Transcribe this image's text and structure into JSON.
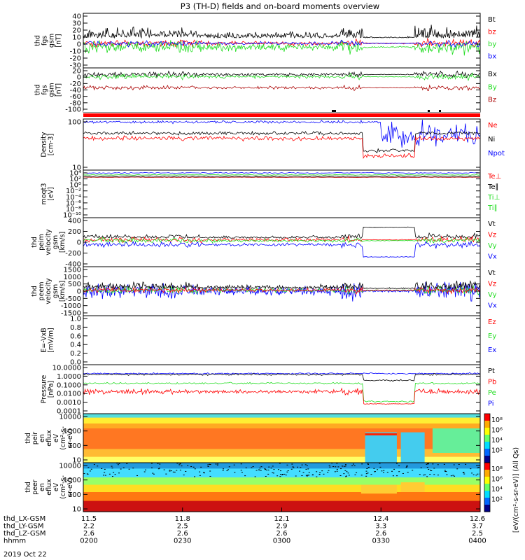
{
  "title": "P3 (TH-D) fields and on-board moments overview",
  "date_label": "2019 Oct 22",
  "colors": {
    "black": "#000000",
    "red": "#ff0000",
    "green": "#22dd22",
    "blue": "#0000ff",
    "darkred": "#aa0000"
  },
  "x_axis": {
    "rows": [
      {
        "label": "thd_LX-GSM",
        "values": [
          "11.5",
          "11.8",
          "12.1",
          "12.4",
          "12.6"
        ]
      },
      {
        "label": "thd_LY-GSM",
        "values": [
          "2.2",
          "2.5",
          "2.9",
          "3.3",
          "3.7"
        ]
      },
      {
        "label": "thd_LZ-GSM",
        "values": [
          "2.6",
          "2.6",
          "2.6",
          "2.6",
          "2.5"
        ]
      },
      {
        "label": "hhmm",
        "values": [
          "0200",
          "0230",
          "0300",
          "0330",
          "0400"
        ]
      }
    ]
  },
  "chart_data": {
    "type": "line",
    "time_range": [
      "0200",
      "0400"
    ],
    "panels": [
      {
        "ylabel": [
          "thd",
          "fgs",
          "gsm",
          "[nT]"
        ],
        "yticks": [
          "40",
          "30",
          "20",
          "10",
          "0",
          "-10",
          "-20",
          "-30"
        ],
        "ylim": [
          -35,
          40
        ],
        "legend": [
          {
            "text": "Bt",
            "color": "#000000"
          },
          {
            "text": "bz",
            "color": "#ff0000"
          },
          {
            "text": "by",
            "color": "#22dd22"
          },
          {
            "text": "bx",
            "color": "#0000ff"
          }
        ]
      },
      {
        "ylabel": [
          "thd",
          "fgs",
          "gsm",
          "[nT]"
        ],
        "yticks": [
          "20",
          "0",
          "-20",
          "-40",
          "-60",
          "-80",
          "-100"
        ],
        "ylim": [
          -105,
          25
        ],
        "legend": [
          {
            "text": "Bx",
            "color": "#000000"
          },
          {
            "text": "By",
            "color": "#22dd22"
          },
          {
            "text": "Bz",
            "color": "#aa0000"
          }
        ]
      },
      {
        "ylabel": [
          "Density",
          "[cm-3]"
        ],
        "yticks": [
          "100",
          "10"
        ],
        "ylim": [
          0.5,
          500
        ],
        "scale": "log",
        "legend": [
          {
            "text": "Ne",
            "color": "#ff0000"
          },
          {
            "text": "Ni",
            "color": "#000000"
          },
          {
            "text": "Npot",
            "color": "#0000ff"
          }
        ]
      },
      {
        "ylabel": [
          "moqt3",
          "[eV]"
        ],
        "yticks": [
          "10⁴",
          "10²",
          "10⁰",
          "10⁻²",
          "10⁻⁴",
          "10⁻⁶",
          "10⁻⁸",
          "10⁻¹⁰"
        ],
        "ylim": [
          -12,
          4
        ],
        "scale": "log",
        "legend": [
          {
            "text": "Te⊥",
            "color": "#ff0000"
          },
          {
            "text": "Te∥",
            "color": "#000000"
          },
          {
            "text": "Ti⊥",
            "color": "#22dd22"
          },
          {
            "text": "Ti∥",
            "color": "#22dd22"
          }
        ]
      },
      {
        "ylabel": [
          "thd",
          "peim",
          "velocity",
          "gsm",
          "[km/s]"
        ],
        "yticks": [
          "400",
          "200",
          "0",
          "-200",
          "-400"
        ],
        "ylim": [
          -420,
          420
        ],
        "legend": [
          {
            "text": "Vt",
            "color": "#000000"
          },
          {
            "text": "Vz",
            "color": "#ff0000"
          },
          {
            "text": "Vy",
            "color": "#22dd22"
          },
          {
            "text": "Vx",
            "color": "#0000ff"
          }
        ]
      },
      {
        "ylabel": [
          "thd",
          "peem",
          "velocity",
          "gsm",
          "[km/s]"
        ],
        "yticks": [
          "1500",
          "1000",
          "500",
          "0",
          "-500",
          "-1000",
          "-1500"
        ],
        "ylim": [
          -1550,
          1550
        ],
        "legend": [
          {
            "text": "Vt",
            "color": "#000000"
          },
          {
            "text": "Vz",
            "color": "#ff0000"
          },
          {
            "text": "Vy",
            "color": "#22dd22"
          },
          {
            "text": "Vx",
            "color": "#0000ff"
          }
        ]
      },
      {
        "ylabel": [
          "E=-VxB",
          "[mV/m]"
        ],
        "yticks": [
          "1.0",
          "0.8",
          "0.6",
          "0.4",
          "0.2",
          "0.0"
        ],
        "ylim": [
          0,
          1
        ],
        "legend": [
          {
            "text": "Ez",
            "color": "#ff0000"
          },
          {
            "text": "Ey",
            "color": "#22dd22"
          },
          {
            "text": "Ex",
            "color": "#0000ff"
          }
        ]
      },
      {
        "ylabel": [
          "Pressure",
          "[nPa]"
        ],
        "yticks": [
          "10.0000",
          "1.0000",
          "0.1000",
          "0.0100",
          "0.0010",
          "0.0001"
        ],
        "ylim": [
          -4,
          1
        ],
        "scale": "log",
        "legend": [
          {
            "text": "Pt",
            "color": "#000000"
          },
          {
            "text": "Pb",
            "color": "#ff0000"
          },
          {
            "text": "Pe",
            "color": "#22dd22"
          },
          {
            "text": "Pi",
            "color": "#0000ff"
          }
        ]
      },
      {
        "ylabel": [
          "thd",
          "peir",
          "en",
          "eflux",
          "eV",
          "(cm²-s-",
          "sr-eV)"
        ],
        "yticks": [
          "10000",
          "1000",
          "100",
          "10"
        ],
        "ylim": [
          5,
          30000
        ],
        "scale": "log",
        "colorbar": [
          "10⁸",
          "10⁶",
          "10⁴",
          "10²"
        ],
        "type": "heatmap"
      },
      {
        "ylabel": [
          "thd",
          "peer",
          "en",
          "eflux",
          "eV",
          "(cm²-s-",
          "sr-eV)"
        ],
        "yticks": [
          "10000",
          "1000",
          "100",
          "10"
        ],
        "ylim": [
          5,
          30000
        ],
        "scale": "log",
        "colorbar": [
          "10⁸",
          "10⁶",
          "10⁴",
          "10²"
        ],
        "type": "heatmap"
      }
    ],
    "colorbar_label": "[eV/(cm²-s-sr-eV)] (All Qs)"
  }
}
